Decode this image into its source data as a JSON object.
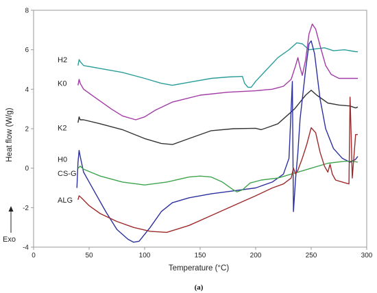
{
  "chart_data": {
    "type": "line",
    "xlabel": "Temperature (°C)",
    "ylabel": "Heat flow (W/g)",
    "xlim": [
      0,
      300
    ],
    "ylim": [
      -4,
      8
    ],
    "xticks": [
      0,
      50,
      100,
      150,
      200,
      250,
      300
    ],
    "yticks": [
      -4,
      -2,
      0,
      2,
      4,
      6,
      8
    ],
    "grid": false,
    "legend": "inline labels at left",
    "exo_label": "Exo",
    "panel_label": "(a)",
    "series": [
      {
        "name": "H2",
        "color": "#2a9d9a",
        "points": [
          [
            40,
            5.2
          ],
          [
            41,
            5.5
          ],
          [
            42,
            5.4
          ],
          [
            45,
            5.2
          ],
          [
            60,
            5.05
          ],
          [
            80,
            4.85
          ],
          [
            100,
            4.55
          ],
          [
            115,
            4.3
          ],
          [
            125,
            4.2
          ],
          [
            140,
            4.35
          ],
          [
            160,
            4.55
          ],
          [
            175,
            4.62
          ],
          [
            188,
            4.65
          ],
          [
            190,
            4.3
          ],
          [
            193,
            4.1
          ],
          [
            196,
            4.1
          ],
          [
            200,
            4.4
          ],
          [
            210,
            5.0
          ],
          [
            220,
            5.6
          ],
          [
            230,
            6.0
          ],
          [
            237,
            6.35
          ],
          [
            242,
            6.3
          ],
          [
            248,
            6.0
          ],
          [
            255,
            6.05
          ],
          [
            262,
            6.1
          ],
          [
            270,
            5.95
          ],
          [
            280,
            6.0
          ],
          [
            290,
            5.9
          ],
          [
            292,
            5.9
          ]
        ]
      },
      {
        "name": "K0",
        "color": "#a23aa6",
        "points": [
          [
            40,
            4.2
          ],
          [
            41,
            4.5
          ],
          [
            42,
            4.3
          ],
          [
            45,
            4.0
          ],
          [
            55,
            3.6
          ],
          [
            70,
            3.0
          ],
          [
            80,
            2.65
          ],
          [
            92,
            2.45
          ],
          [
            100,
            2.6
          ],
          [
            110,
            2.95
          ],
          [
            125,
            3.35
          ],
          [
            150,
            3.7
          ],
          [
            175,
            3.85
          ],
          [
            200,
            3.92
          ],
          [
            215,
            4.0
          ],
          [
            225,
            4.15
          ],
          [
            232,
            4.5
          ],
          [
            236,
            5.2
          ],
          [
            238,
            5.6
          ],
          [
            240,
            5.1
          ],
          [
            242,
            4.7
          ],
          [
            245,
            5.5
          ],
          [
            248,
            6.8
          ],
          [
            251,
            7.3
          ],
          [
            254,
            7.05
          ],
          [
            258,
            6.2
          ],
          [
            263,
            5.2
          ],
          [
            268,
            4.75
          ],
          [
            275,
            4.55
          ],
          [
            292,
            4.55
          ]
        ]
      },
      {
        "name": "K2",
        "color": "#333333",
        "points": [
          [
            40,
            2.3
          ],
          [
            41,
            2.6
          ],
          [
            42,
            2.45
          ],
          [
            45,
            2.45
          ],
          [
            60,
            2.25
          ],
          [
            80,
            1.95
          ],
          [
            100,
            1.5
          ],
          [
            115,
            1.25
          ],
          [
            125,
            1.2
          ],
          [
            140,
            1.5
          ],
          [
            160,
            1.9
          ],
          [
            180,
            2.0
          ],
          [
            200,
            2.02
          ],
          [
            205,
            1.95
          ],
          [
            210,
            2.05
          ],
          [
            220,
            2.25
          ],
          [
            235,
            3.0
          ],
          [
            245,
            3.7
          ],
          [
            250,
            3.95
          ],
          [
            255,
            3.7
          ],
          [
            265,
            3.3
          ],
          [
            275,
            3.2
          ],
          [
            285,
            3.15
          ],
          [
            290,
            3.05
          ],
          [
            292,
            3.1
          ]
        ]
      },
      {
        "name": "H0",
        "color": "#2b2f9e",
        "points": [
          [
            39,
            -1.0
          ],
          [
            40,
            0.3
          ],
          [
            41,
            0.9
          ],
          [
            42,
            0.6
          ],
          [
            45,
            -0.2
          ],
          [
            55,
            -1.2
          ],
          [
            65,
            -2.2
          ],
          [
            75,
            -3.1
          ],
          [
            85,
            -3.6
          ],
          [
            90,
            -3.75
          ],
          [
            95,
            -3.7
          ],
          [
            105,
            -3.0
          ],
          [
            115,
            -2.2
          ],
          [
            125,
            -1.75
          ],
          [
            140,
            -1.5
          ],
          [
            160,
            -1.3
          ],
          [
            180,
            -1.15
          ],
          [
            200,
            -1.0
          ],
          [
            215,
            -0.7
          ],
          [
            225,
            -0.3
          ],
          [
            230,
            0.5
          ],
          [
            233,
            4.4
          ],
          [
            234,
            -2.2
          ],
          [
            236,
            -0.5
          ],
          [
            238,
            0.8
          ],
          [
            240,
            2.5
          ],
          [
            245,
            5.0
          ],
          [
            248,
            6.3
          ],
          [
            250,
            6.45
          ],
          [
            253,
            5.8
          ],
          [
            258,
            3.5
          ],
          [
            263,
            2.0
          ],
          [
            270,
            1.0
          ],
          [
            278,
            0.5
          ],
          [
            285,
            0.3
          ],
          [
            290,
            0.45
          ],
          [
            292,
            0.6
          ]
        ]
      },
      {
        "name": "CS-G",
        "color": "#3fa34d",
        "points": [
          [
            40,
            0.0
          ],
          [
            42,
            0.1
          ],
          [
            45,
            -0.05
          ],
          [
            60,
            -0.4
          ],
          [
            80,
            -0.7
          ],
          [
            100,
            -0.85
          ],
          [
            120,
            -0.7
          ],
          [
            140,
            -0.45
          ],
          [
            150,
            -0.4
          ],
          [
            160,
            -0.45
          ],
          [
            170,
            -0.7
          ],
          [
            180,
            -1.1
          ],
          [
            183,
            -1.2
          ],
          [
            188,
            -1.1
          ],
          [
            195,
            -0.75
          ],
          [
            205,
            -0.6
          ],
          [
            220,
            -0.5
          ],
          [
            235,
            -0.25
          ],
          [
            250,
            0.0
          ],
          [
            265,
            0.25
          ],
          [
            280,
            0.35
          ],
          [
            288,
            0.35
          ],
          [
            292,
            0.3
          ]
        ]
      },
      {
        "name": "ALG",
        "color": "#9c2a2a",
        "points": [
          [
            40,
            -1.6
          ],
          [
            41,
            -1.4
          ],
          [
            43,
            -1.5
          ],
          [
            50,
            -1.9
          ],
          [
            60,
            -2.3
          ],
          [
            75,
            -2.7
          ],
          [
            90,
            -3.0
          ],
          [
            105,
            -3.2
          ],
          [
            120,
            -3.25
          ],
          [
            140,
            -2.9
          ],
          [
            160,
            -2.4
          ],
          [
            180,
            -1.9
          ],
          [
            200,
            -1.4
          ],
          [
            215,
            -1.0
          ],
          [
            225,
            -0.8
          ],
          [
            232,
            -0.5
          ],
          [
            234,
            0.0
          ],
          [
            236,
            -0.3
          ],
          [
            238,
            -0.1
          ],
          [
            242,
            0.5
          ],
          [
            246,
            1.2
          ],
          [
            250,
            2.05
          ],
          [
            254,
            1.8
          ],
          [
            258,
            0.8
          ],
          [
            262,
            0.1
          ],
          [
            265,
            -0.2
          ],
          [
            267,
            0.2
          ],
          [
            269,
            -0.3
          ],
          [
            272,
            -0.6
          ],
          [
            278,
            -0.7
          ],
          [
            284,
            -0.8
          ],
          [
            285,
            3.6
          ],
          [
            286,
            1.7
          ],
          [
            287,
            -0.5
          ],
          [
            290,
            1.7
          ],
          [
            292,
            1.7
          ]
        ]
      }
    ]
  }
}
